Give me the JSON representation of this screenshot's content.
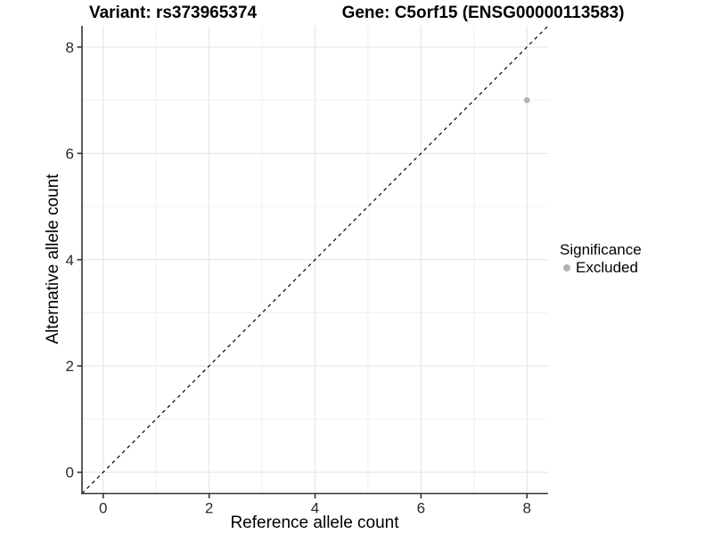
{
  "titles": {
    "variant": "Variant: rs373965374",
    "gene": "Gene: C5orf15 (ENSG00000113583)"
  },
  "chart_data": {
    "type": "scatter",
    "xlabel": "Reference allele count",
    "ylabel": "Alternative allele count",
    "xlim": [
      -0.4,
      8.4
    ],
    "ylim": [
      -0.4,
      8.4
    ],
    "x_ticks_major": [
      0,
      2,
      4,
      6,
      8
    ],
    "x_ticks_minor": [
      1,
      3,
      5,
      7
    ],
    "y_ticks_major": [
      0,
      2,
      4,
      6,
      8
    ],
    "y_ticks_minor": [
      1,
      3,
      5,
      7
    ],
    "grid": true,
    "identity_line": {
      "style": "dashed",
      "slope": 1,
      "intercept": 0
    },
    "series": [
      {
        "name": "Excluded",
        "points": [
          {
            "x": 8,
            "y": 7
          }
        ]
      }
    ],
    "legend": {
      "title": "Significance",
      "position": "right",
      "items": [
        {
          "label": "Excluded"
        }
      ]
    }
  },
  "colors": {
    "background": "#ffffff",
    "grid_major": "#e3e3e3",
    "grid_minor": "#f0f0f0",
    "axis_line": "#333333",
    "tick_label": "#2b2b2b",
    "identity_line": "#000000",
    "point": "#b3b3b3",
    "legend_key": "#b3b3b3"
  }
}
